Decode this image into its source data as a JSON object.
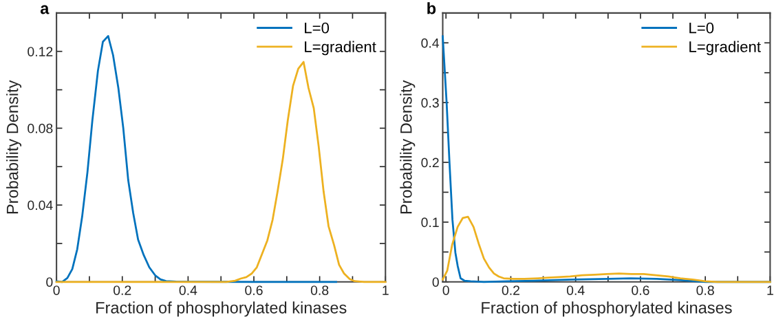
{
  "chart_data": [
    {
      "type": "line",
      "title": "a",
      "xlabel": "Fraction of phosphorylated kinases",
      "ylabel": "Probability Density",
      "legend": "top right",
      "grid": false,
      "xlim": [
        0,
        1
      ],
      "xticks": [
        0,
        {
          "value": 0.1,
          "label": null
        },
        0.2,
        {
          "value": 0.3,
          "label": null
        },
        0.4,
        {
          "value": 0.5,
          "label": null
        },
        0.6,
        {
          "value": 0.7,
          "label": null
        },
        0.8,
        {
          "value": 0.9,
          "label": null
        },
        1
      ],
      "ylim": [
        0,
        0.14
      ],
      "yticks": [
        0,
        {
          "value": 0.02,
          "label": null
        },
        0.04,
        {
          "value": 0.06,
          "label": null
        },
        0.08,
        {
          "value": 0.1,
          "label": null
        },
        0.12
      ],
      "series": [
        {
          "name": "L=0",
          "color": "#0072bd",
          "x": [
            0,
            0.017,
            0.033,
            0.048,
            0.063,
            0.078,
            0.094,
            0.109,
            0.126,
            0.141,
            0.157,
            0.172,
            0.188,
            0.203,
            0.218,
            0.233,
            0.248,
            0.265,
            0.282,
            0.3,
            0.316,
            0.333,
            0.364,
            0.6,
            0.85
          ],
          "values": [
            0.0003,
            0,
            0.002,
            0.0067,
            0.017,
            0.034,
            0.057,
            0.084,
            0.11,
            0.125,
            0.128,
            0.118,
            0.101,
            0.08,
            0.053,
            0.036,
            0.022,
            0.014,
            0.0076,
            0.0034,
            0.0013,
            0.0004,
            0.0001,
            0,
            0
          ]
        },
        {
          "name": "L=gradient",
          "color": "#edb120",
          "x": [
            0,
            0.2,
            0.4,
            0.516,
            0.543,
            0.56,
            0.577,
            0.594,
            0.609,
            0.625,
            0.641,
            0.657,
            0.672,
            0.688,
            0.703,
            0.719,
            0.735,
            0.751,
            0.766,
            0.782,
            0.797,
            0.812,
            0.827,
            0.844,
            0.859,
            0.874,
            0.891,
            0.906,
            0.935,
            1
          ],
          "values": [
            0,
            0,
            0,
            0,
            0.0006,
            0.0017,
            0.0025,
            0.0044,
            0.0076,
            0.0146,
            0.0216,
            0.0324,
            0.047,
            0.064,
            0.084,
            0.102,
            0.111,
            0.1145,
            0.101,
            0.0905,
            0.0705,
            0.047,
            0.029,
            0.019,
            0.0089,
            0.0044,
            0.0015,
            0.0004,
            0,
            0
          ]
        }
      ]
    },
    {
      "type": "line",
      "title": "b",
      "xlabel": "Fraction of phosphorylated kinases",
      "ylabel": "Probability Density",
      "legend": "top right",
      "grid": false,
      "xlim": [
        -0.01,
        1
      ],
      "xticks": [
        0,
        {
          "value": 0.1,
          "label": null
        },
        0.2,
        {
          "value": 0.3,
          "label": null
        },
        0.4,
        {
          "value": 0.5,
          "label": null
        },
        0.6,
        {
          "value": 0.7,
          "label": null
        },
        0.8,
        {
          "value": 0.9,
          "label": null
        },
        1
      ],
      "ylim": [
        0,
        0.45
      ],
      "yticks": [
        0,
        {
          "value": 0.05,
          "label": null
        },
        0.1,
        {
          "value": 0.15,
          "label": null
        },
        0.2,
        {
          "value": 0.25,
          "label": null
        },
        0.3,
        {
          "value": 0.35,
          "label": null
        },
        0.4
      ],
      "series": [
        {
          "name": "L=0",
          "color": "#0072bd",
          "x": [
            -0.01,
            0.002,
            0.011,
            0.02,
            0.029,
            0.036,
            0.045,
            0.057,
            0.076,
            0.117,
            0.19,
            0.27,
            0.39,
            0.5,
            0.57,
            0.65,
            0.69,
            0.72,
            0.77,
            0.8,
            1
          ],
          "values": [
            0.411,
            0.3,
            0.198,
            0.104,
            0.049,
            0.027,
            0.006,
            0.002,
            0.001,
            0,
            0.001,
            0.002,
            0.004,
            0.005,
            0.006,
            0.005,
            0.004,
            0.003,
            0.001,
            0,
            0
          ]
        },
        {
          "name": "L=gradient",
          "color": "#edb120",
          "x": [
            -0.01,
            0.004,
            0.019,
            0.036,
            0.052,
            0.068,
            0.085,
            0.101,
            0.117,
            0.133,
            0.148,
            0.163,
            0.178,
            0.208,
            0.239,
            0.284,
            0.314,
            0.345,
            0.383,
            0.42,
            0.458,
            0.496,
            0.534,
            0.572,
            0.61,
            0.648,
            0.686,
            0.723,
            0.761,
            0.8,
            0.837,
            1
          ],
          "values": [
            0.004,
            0.019,
            0.062,
            0.092,
            0.107,
            0.109,
            0.092,
            0.064,
            0.039,
            0.024,
            0.014,
            0.009,
            0.006,
            0.005,
            0.005,
            0.006,
            0.007,
            0.008,
            0.009,
            0.011,
            0.012,
            0.013,
            0.014,
            0.013,
            0.013,
            0.011,
            0.009,
            0.006,
            0.004,
            0.001,
            0,
            0
          ]
        }
      ]
    }
  ]
}
